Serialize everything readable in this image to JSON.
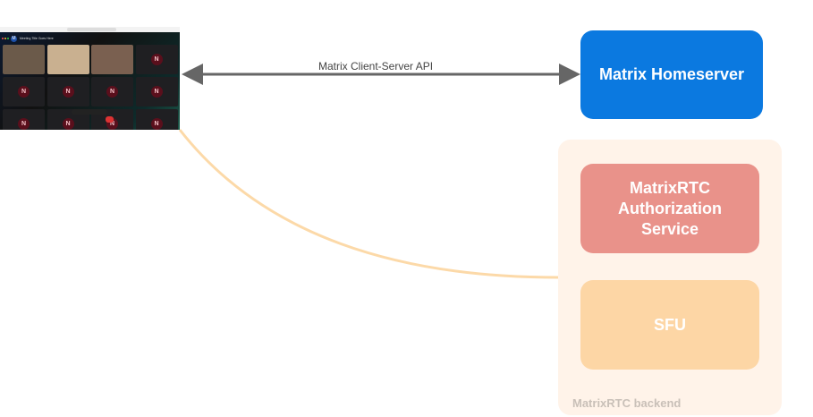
{
  "client": {
    "meeting_title": "Meeting Title Goes Here",
    "avatar_letter": "M",
    "tile_letter": "N",
    "tiles_total": 12
  },
  "connections": {
    "api_label": "Matrix Client-Server API",
    "arrow_color": "#666666",
    "rtc_line_color": "#fcd9a8"
  },
  "nodes": {
    "homeserver": {
      "label": "Matrix Homeserver",
      "color": "#0b79e0"
    },
    "backend": {
      "label": "MatrixRTC backend",
      "color": "#fff3e9"
    },
    "auth": {
      "label": "MatrixRTC Authorization Service",
      "color": "#e9928a"
    },
    "sfu": {
      "label": "SFU",
      "color": "#fdd6a5"
    }
  }
}
